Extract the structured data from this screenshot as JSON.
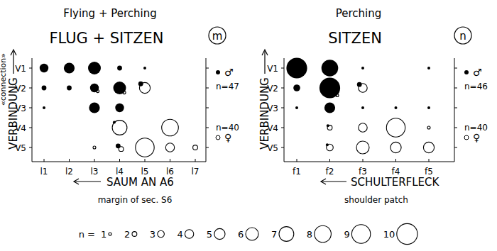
{
  "chart_data": [
    {
      "type": "bubble",
      "subtitle": "Flying + Perching",
      "title": "FLUG + SITZEN",
      "panel_label": "m",
      "y_label": "VERBINDUNG",
      "y_label_translation": "«connection»",
      "x_label": "SAUM AN A6",
      "x_label_translation": "margin of sec. S6",
      "categories": [
        "l1",
        "l2",
        "l3",
        "l4",
        "l5",
        "l6",
        "l7"
      ],
      "y_categories": [
        "V1",
        "V2",
        "V3",
        "V4",
        "V5"
      ],
      "series": [
        {
          "name": "♂",
          "color": "#000000",
          "marker": "filled",
          "sample_label": "n=47",
          "x": [
            "l1",
            "l2",
            "l3",
            "l4",
            "l5",
            "l1",
            "l2",
            "l3",
            "l4",
            "l5",
            "l1",
            "l3",
            "l4",
            "l4",
            "l4"
          ],
          "y": [
            "V1",
            "V1",
            "V1",
            "V1",
            "V1",
            "V2",
            "V2",
            "V2",
            "V2",
            "V2",
            "V3",
            "V3",
            "V3",
            "V4",
            "V5"
          ],
          "sizes": [
            4,
            5,
            6,
            2,
            1,
            2,
            2,
            4,
            6,
            2,
            1,
            5,
            4,
            1,
            2
          ]
        },
        {
          "name": "♀",
          "color": "#000000",
          "marker": "open",
          "sample_label": "n=40",
          "x": [
            "l3",
            "l4",
            "l5",
            "l4",
            "l6",
            "l3",
            "l4",
            "l5",
            "l6",
            "l7"
          ],
          "y": [
            "V2",
            "V2",
            "V2",
            "V4",
            "V4",
            "V5",
            "V5",
            "V5",
            "V5",
            "V5"
          ],
          "sizes": [
            1,
            1,
            5,
            7,
            8,
            1,
            2,
            9,
            4,
            2
          ]
        }
      ]
    },
    {
      "type": "bubble",
      "subtitle": "Perching",
      "title": "SITZEN",
      "panel_label": "n",
      "y_label": "VERBINDUNG",
      "x_label": "SCHULTERFLECK",
      "x_label_translation": "shoulder patch",
      "categories": [
        "f1",
        "f2",
        "f3",
        "f4",
        "f5"
      ],
      "y_categories": [
        "V1",
        "V2",
        "V3",
        "V4",
        "V5"
      ],
      "series": [
        {
          "name": "♂",
          "color": "#000000",
          "marker": "filled",
          "sample_label": "n=46",
          "x": [
            "f1",
            "f2",
            "f3",
            "f5",
            "f1",
            "f2",
            "f3",
            "f1",
            "f2",
            "f3",
            "f4",
            "f5",
            "f2",
            "f2"
          ],
          "y": [
            "V1",
            "V1",
            "V1",
            "V1",
            "V2",
            "V2",
            "V2",
            "V3",
            "V3",
            "V3",
            "V3",
            "V3",
            "V4",
            "V5"
          ],
          "sizes": [
            10,
            8,
            1,
            1,
            3,
            10,
            2,
            1,
            5,
            1,
            1,
            1,
            1,
            1
          ]
        },
        {
          "name": "♀",
          "color": "#000000",
          "marker": "open",
          "sample_label": "n=40",
          "x": [
            "f2",
            "f3",
            "f2",
            "f3",
            "f4",
            "f5",
            "f2",
            "f3",
            "f4",
            "f5"
          ],
          "y": [
            "V2",
            "V2",
            "V4",
            "V4",
            "V4",
            "V4",
            "V5",
            "V5",
            "V5",
            "V5"
          ],
          "sizes": [
            1,
            4,
            2,
            4,
            9,
            1,
            3,
            6,
            5,
            5
          ]
        }
      ]
    }
  ],
  "size_legend": {
    "label": "n =",
    "values": [
      1,
      2,
      3,
      4,
      5,
      6,
      7,
      8,
      9,
      10
    ]
  }
}
